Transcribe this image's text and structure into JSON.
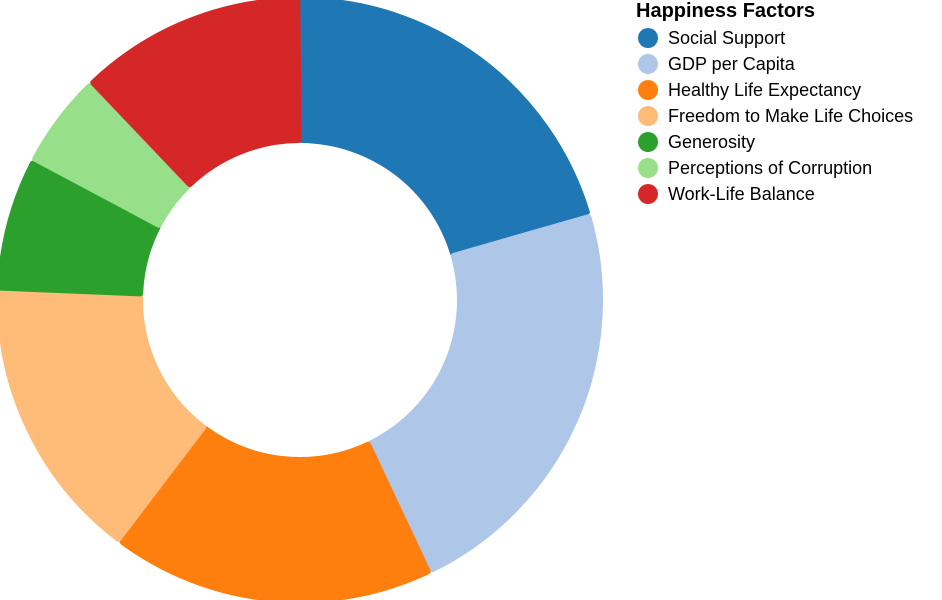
{
  "chart_data": {
    "type": "pie",
    "variant": "donut",
    "legend_title": "Happiness Factors",
    "legend_position": "right",
    "categories": [
      "Social Support",
      "GDP per Capita",
      "Healthy Life Expectancy",
      "Freedom to Make Life Choices",
      "Generosity",
      "Perceptions of Corruption",
      "Work-Life Balance"
    ],
    "values": [
      20,
      22,
      17,
      15,
      7,
      5,
      12
    ],
    "colors": [
      "#1f77b4",
      "#aec7e8",
      "#ff7f0e",
      "#ffbb78",
      "#2ca02c",
      "#98df8a",
      "#d62728"
    ]
  }
}
